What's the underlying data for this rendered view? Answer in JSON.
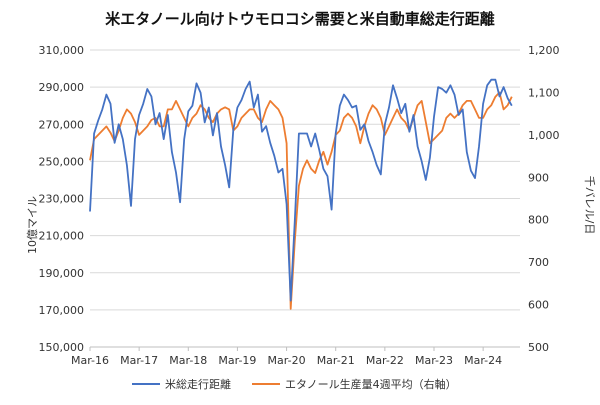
{
  "chart_data": {
    "type": "line",
    "title": "米エタノール向けトウモロコシ需要と米自動車総走行距離",
    "ylabel_left": "10億マイル",
    "ylabel_right": "千バレル/日",
    "ylim_left": [
      150000,
      310000
    ],
    "ylim_right": [
      500,
      1200
    ],
    "yticks_left": [
      "150,000",
      "170,000",
      "190,000",
      "210,000",
      "230,000",
      "250,000",
      "270,000",
      "290,000",
      "310,000"
    ],
    "yticks_right": [
      "500",
      "600",
      "700",
      "800",
      "900",
      "1,000",
      "1,100",
      "1,200"
    ],
    "x_start": "2016-03",
    "x_end": "2024-12",
    "xticks": [
      "Mar-16",
      "Mar-17",
      "Mar-18",
      "Mar-19",
      "Mar-20",
      "Mar-21",
      "Mar-22",
      "Mar-23",
      "Mar-24"
    ],
    "grid": "horizontal",
    "legend_position": "bottom",
    "series": [
      {
        "name": "米総走行距離",
        "axis": "left",
        "color": "#4472C4",
        "x": [
          "2016-03",
          "2016-04",
          "2016-05",
          "2016-06",
          "2016-07",
          "2016-08",
          "2016-09",
          "2016-10",
          "2016-11",
          "2016-12",
          "2017-01",
          "2017-02",
          "2017-03",
          "2017-04",
          "2017-05",
          "2017-06",
          "2017-07",
          "2017-08",
          "2017-09",
          "2017-10",
          "2017-11",
          "2017-12",
          "2018-01",
          "2018-02",
          "2018-03",
          "2018-04",
          "2018-05",
          "2018-06",
          "2018-07",
          "2018-08",
          "2018-09",
          "2018-10",
          "2018-11",
          "2018-12",
          "2019-01",
          "2019-02",
          "2019-03",
          "2019-04",
          "2019-05",
          "2019-06",
          "2019-07",
          "2019-08",
          "2019-09",
          "2019-10",
          "2019-11",
          "2019-12",
          "2020-01",
          "2020-02",
          "2020-03",
          "2020-04",
          "2020-05",
          "2020-06",
          "2020-07",
          "2020-08",
          "2020-09",
          "2020-10",
          "2020-11",
          "2020-12",
          "2021-01",
          "2021-02",
          "2021-03",
          "2021-04",
          "2021-05",
          "2021-06",
          "2021-07",
          "2021-08",
          "2021-09",
          "2021-10",
          "2021-11",
          "2021-12",
          "2022-01",
          "2022-02",
          "2022-03",
          "2022-04",
          "2022-05",
          "2022-06",
          "2022-07",
          "2022-08",
          "2022-09",
          "2022-10",
          "2022-11",
          "2022-12",
          "2023-01",
          "2023-02",
          "2023-03",
          "2023-04",
          "2023-05",
          "2023-06",
          "2023-07",
          "2023-08",
          "2023-09",
          "2023-10",
          "2023-11",
          "2023-12",
          "2024-01",
          "2024-02",
          "2024-03",
          "2024-04",
          "2024-05",
          "2024-06",
          "2024-07",
          "2024-08",
          "2024-09",
          "2024-10"
        ],
        "values": [
          223000,
          265000,
          272000,
          278000,
          286000,
          281000,
          260000,
          270000,
          262000,
          248000,
          226000,
          262000,
          275000,
          281000,
          289000,
          285000,
          270000,
          276000,
          262000,
          275000,
          255000,
          244000,
          228000,
          262000,
          277000,
          280000,
          292000,
          287000,
          271000,
          279000,
          264000,
          276000,
          258000,
          248000,
          236000,
          267000,
          279000,
          283000,
          289000,
          293000,
          279000,
          286000,
          266000,
          269000,
          260000,
          253000,
          244000,
          246000,
          227000,
          175000,
          218000,
          265000,
          265000,
          265000,
          258000,
          265000,
          256000,
          246000,
          242000,
          224000,
          265000,
          280000,
          286000,
          283000,
          279000,
          280000,
          267000,
          270000,
          261000,
          255000,
          248000,
          243000,
          270000,
          279000,
          291000,
          284000,
          276000,
          281000,
          266000,
          275000,
          258000,
          250000,
          240000,
          252000,
          274000,
          290000,
          289000,
          287000,
          291000,
          286000,
          275000,
          278000,
          255000,
          245000,
          241000,
          258000,
          281000,
          291000,
          294000,
          294000,
          285000,
          290000,
          284000,
          280000
        ]
      },
      {
        "name": "エタノール生産量4週平均（右軸）",
        "axis": "right",
        "color": "#ED7D31",
        "x": [
          "2016-03",
          "2016-04",
          "2016-05",
          "2016-06",
          "2016-07",
          "2016-08",
          "2016-09",
          "2016-10",
          "2016-11",
          "2016-12",
          "2017-01",
          "2017-02",
          "2017-03",
          "2017-04",
          "2017-05",
          "2017-06",
          "2017-07",
          "2017-08",
          "2017-09",
          "2017-10",
          "2017-11",
          "2017-12",
          "2018-01",
          "2018-02",
          "2018-03",
          "2018-04",
          "2018-05",
          "2018-06",
          "2018-07",
          "2018-08",
          "2018-09",
          "2018-10",
          "2018-11",
          "2018-12",
          "2019-01",
          "2019-02",
          "2019-03",
          "2019-04",
          "2019-05",
          "2019-06",
          "2019-07",
          "2019-08",
          "2019-09",
          "2019-10",
          "2019-11",
          "2019-12",
          "2020-01",
          "2020-02",
          "2020-03",
          "2020-04",
          "2020-05",
          "2020-06",
          "2020-07",
          "2020-08",
          "2020-09",
          "2020-10",
          "2020-11",
          "2020-12",
          "2021-01",
          "2021-02",
          "2021-03",
          "2021-04",
          "2021-05",
          "2021-06",
          "2021-07",
          "2021-08",
          "2021-09",
          "2021-10",
          "2021-11",
          "2021-12",
          "2022-01",
          "2022-02",
          "2022-03",
          "2022-04",
          "2022-05",
          "2022-06",
          "2022-07",
          "2022-08",
          "2022-09",
          "2022-10",
          "2022-11",
          "2022-12",
          "2023-01",
          "2023-02",
          "2023-03",
          "2023-04",
          "2023-05",
          "2023-06",
          "2023-07",
          "2023-08",
          "2023-09",
          "2023-10",
          "2023-11",
          "2023-12",
          "2024-01",
          "2024-02",
          "2024-03",
          "2024-04",
          "2024-05",
          "2024-06",
          "2024-07",
          "2024-08",
          "2024-09",
          "2024-10"
        ],
        "values": [
          940,
          990,
          1000,
          1010,
          1020,
          1005,
          985,
          1010,
          1040,
          1060,
          1050,
          1030,
          1000,
          1010,
          1020,
          1035,
          1040,
          1020,
          1020,
          1060,
          1060,
          1080,
          1060,
          1040,
          1020,
          1040,
          1050,
          1070,
          1060,
          1040,
          1030,
          1050,
          1060,
          1065,
          1060,
          1010,
          1020,
          1040,
          1050,
          1060,
          1060,
          1040,
          1030,
          1060,
          1080,
          1070,
          1060,
          1040,
          980,
          590,
          750,
          880,
          920,
          940,
          920,
          910,
          940,
          960,
          930,
          960,
          1000,
          1010,
          1040,
          1050,
          1040,
          1020,
          980,
          1020,
          1050,
          1070,
          1060,
          1040,
          1000,
          1020,
          1040,
          1060,
          1040,
          1030,
          1010,
          1040,
          1070,
          1080,
          1030,
          980,
          990,
          1000,
          1010,
          1040,
          1050,
          1040,
          1050,
          1070,
          1080,
          1080,
          1060,
          1040,
          1040,
          1060,
          1070,
          1090,
          1100,
          1060,
          1070,
          1090
        ]
      }
    ]
  }
}
